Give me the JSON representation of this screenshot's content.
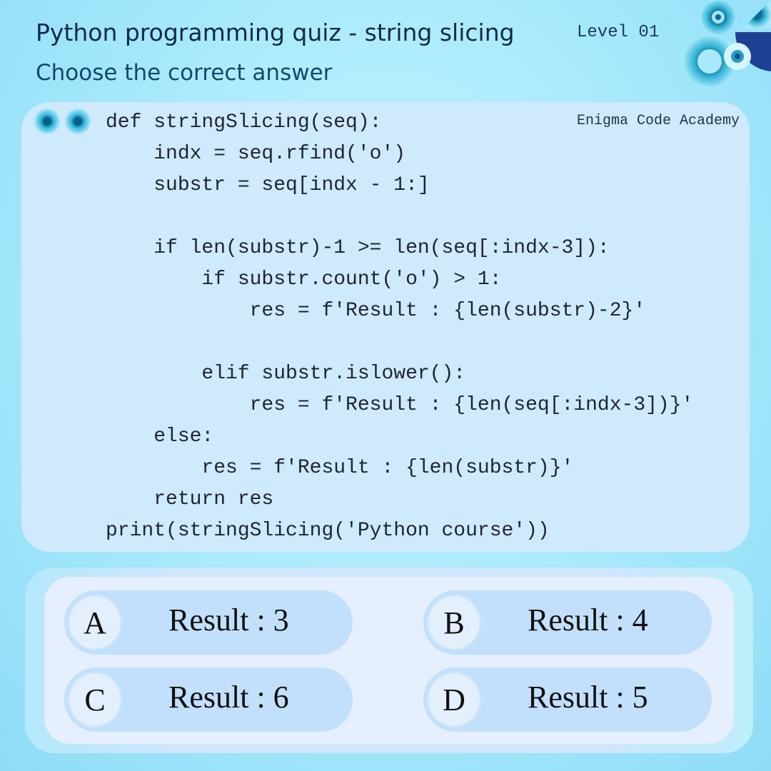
{
  "header": {
    "title": "Python programming quiz - string slicing",
    "subtitle": "Choose the correct answer",
    "level": "Level 01"
  },
  "code_card": {
    "brand": "Enigma Code Academy",
    "lines": [
      "def stringSlicing(seq):",
      "    indx = seq.rfind('o')",
      "    substr = seq[indx - 1:]",
      "",
      "    if len(substr)-1 >= len(seq[:indx-3]):",
      "        if substr.count('o') > 1:",
      "            res = f'Result : {len(substr)-2}'",
      "",
      "        elif substr.islower():",
      "            res = f'Result : {len(seq[:indx-3])}'",
      "    else:",
      "        res = f'Result : {len(substr)}'",
      "    return res",
      "print(stringSlicing('Python course'))"
    ]
  },
  "options": [
    {
      "letter": "A",
      "text": "Result : 3"
    },
    {
      "letter": "B",
      "text": "Result : 4"
    },
    {
      "letter": "C",
      "text": "Result : 6"
    },
    {
      "letter": "D",
      "text": "Result : 5"
    }
  ],
  "colors": {
    "background": "#a6e9fb",
    "code_card": "#cfe9fd",
    "option": "#c2e0fb",
    "accent": "#1f3f94"
  }
}
